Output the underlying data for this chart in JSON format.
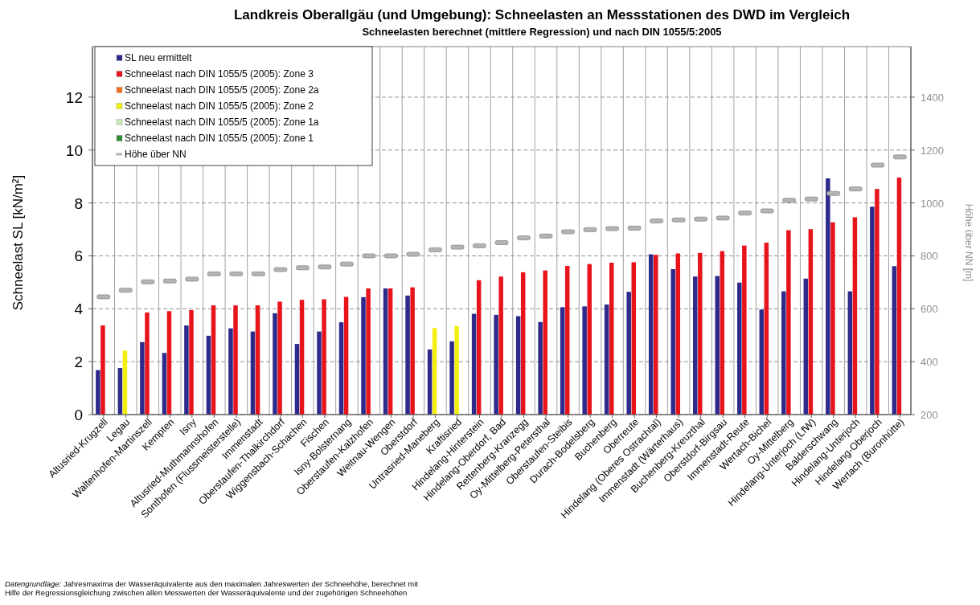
{
  "chart_data": {
    "type": "bar",
    "title": "Landkreis Oberallgäu (und Umgebung): Schneelasten an Messstationen des DWD im Vergleich",
    "subtitle": "Schneelasten berechnet (mittlere Regression) und nach DIN 1055/5:2005",
    "ylabel": "Schneelast SL [kN/m²]",
    "y2label": "Höhe über NN [m]",
    "categories": [
      "Altusried-Krugzell",
      "Legau",
      "Waltenhofen-Martinszell",
      "Kempten",
      "Isny",
      "Altusried-Muthmannshofen",
      "Sonthofen (Flussmeisterstelle)",
      "Immenstadt",
      "Oberstaufen-Thalkirchdorf",
      "Wiggensbach-Schachen",
      "Fischen",
      "Isny-Bolsternang",
      "Oberstaufen-Kalzhofen",
      "Weitnau-Wengen",
      "Oberstdorf",
      "Untrasried-Maneberg",
      "Kraftisried",
      "Hindelang-Hinterstein",
      "Hindelang-Oberdorf, Bad",
      "Rettenberg-Kranzegg",
      "Oy-Mittelberg-Petersthal",
      "Oberstaufen-Steibis",
      "Durach-Bodelsberg",
      "Buchenberg",
      "Oberreute",
      "Hindelang (Oberes Ostrachtal)",
      "Immenstadt (Wärterhaus)",
      "Buchenberg-Kreuzthal",
      "Oberstdorf-Birgsau",
      "Immenstadt-Reute",
      "Wertach-Bichel",
      "Oy-Mittelberg",
      "Hindelang-Unterjoch (LfW)",
      "Balderschwang",
      "Hindelang-Unterjoch",
      "Hindelang-Oberjoch",
      "Wertach (Buronhütte)"
    ],
    "series": [
      {
        "name": "SL neu ermittelt",
        "color": "#2e2a8c",
        "values": [
          1.68,
          1.76,
          2.74,
          2.33,
          3.37,
          2.98,
          3.26,
          3.14,
          3.83,
          2.67,
          3.14,
          3.49,
          4.44,
          4.77,
          4.5,
          2.46,
          2.77,
          3.81,
          3.77,
          3.72,
          3.5,
          4.06,
          4.09,
          4.16,
          4.64,
          6.06,
          5.5,
          5.22,
          5.24,
          4.99,
          3.97,
          4.66,
          5.14,
          8.93,
          4.66,
          7.86,
          5.61
        ]
      },
      {
        "name": "Schneelast nach DIN 1055/5 (2005): Zone 3",
        "color": "#e8141c",
        "values": [
          3.37,
          null,
          3.86,
          3.91,
          3.95,
          4.13,
          4.13,
          4.13,
          4.27,
          4.34,
          4.36,
          4.45,
          4.77,
          4.77,
          4.81,
          null,
          null,
          5.08,
          5.22,
          5.38,
          5.45,
          5.62,
          5.69,
          5.74,
          5.76,
          6.04,
          6.09,
          6.11,
          6.18,
          6.39,
          6.5,
          6.97,
          7.01,
          7.27,
          7.46,
          8.53,
          8.96
        ]
      },
      {
        "name": "Schneelast nach DIN 1055/5 (2005): Zone 2a",
        "color": "#f07020",
        "values": [
          null,
          null,
          null,
          null,
          null,
          null,
          null,
          null,
          null,
          null,
          null,
          null,
          null,
          null,
          null,
          null,
          null,
          null,
          null,
          null,
          null,
          null,
          null,
          null,
          null,
          null,
          null,
          null,
          null,
          null,
          null,
          null,
          null,
          null,
          null,
          null,
          null
        ]
      },
      {
        "name": "Schneelast nach DIN 1055/5 (2005): Zone 2",
        "color": "#f2ee10",
        "values": [
          null,
          2.42,
          null,
          null,
          null,
          null,
          null,
          null,
          null,
          null,
          null,
          null,
          null,
          null,
          null,
          3.27,
          3.35,
          null,
          null,
          null,
          null,
          null,
          null,
          null,
          null,
          null,
          null,
          null,
          null,
          null,
          null,
          null,
          null,
          null,
          null,
          null,
          null
        ]
      },
      {
        "name": "Schneelast nach DIN 1055/5 (2005): Zone 1a",
        "color": "#c8e6b4",
        "values": [
          null,
          null,
          null,
          null,
          null,
          null,
          null,
          null,
          null,
          null,
          null,
          null,
          null,
          null,
          null,
          null,
          null,
          null,
          null,
          null,
          null,
          null,
          null,
          null,
          null,
          null,
          null,
          null,
          null,
          null,
          null,
          null,
          null,
          null,
          null,
          null,
          null
        ]
      },
      {
        "name": "Schneelast nach DIN 1055/5 (2005): Zone 1",
        "color": "#2e8b2e",
        "values": [
          null,
          null,
          null,
          null,
          null,
          null,
          null,
          null,
          null,
          null,
          null,
          null,
          null,
          null,
          null,
          null,
          null,
          null,
          null,
          null,
          null,
          null,
          null,
          null,
          null,
          null,
          null,
          null,
          null,
          null,
          null,
          null,
          null,
          null,
          null,
          null,
          null
        ]
      },
      {
        "name": "Höhe über NN",
        "color": "#b4b4b4",
        "type": "scatter",
        "axis": "y2",
        "marker": "square",
        "values": [
          645,
          670,
          702,
          705,
          712,
          732,
          732,
          732,
          748,
          755,
          758,
          769,
          800,
          800,
          806,
          823,
          833,
          838,
          850,
          868,
          875,
          891,
          899,
          903,
          905,
          932,
          936,
          939,
          943,
          962,
          970,
          1010,
          1015,
          1036,
          1053,
          1143,
          1174
        ]
      }
    ],
    "ylim": [
      0,
      13
    ],
    "yticks": [
      0,
      2,
      4,
      6,
      8,
      10,
      12
    ],
    "y2lim": [
      200,
      1500
    ],
    "y2ticks": [
      200,
      400,
      600,
      800,
      1000,
      1200,
      1400
    ],
    "grid": true,
    "legend": "top left",
    "annotations": [
      "Datengrundlage: Jahresmaxima der Wasseräquivalente aus den maximalen Jahreswerten der Schneehöhe, berechnet mit Hilfe der Regressionsgleichung zwischen allen Messwerten der Wasseräquivalente und der zugehörigen Schneehöhen"
    ]
  }
}
